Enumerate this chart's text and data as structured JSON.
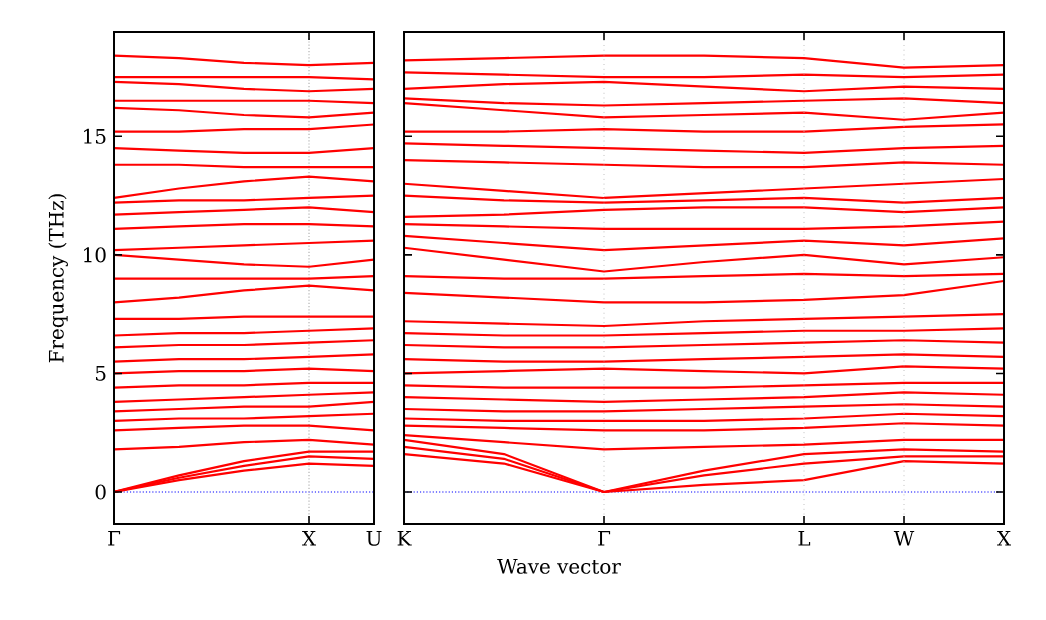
{
  "chart_data": [
    {
      "type": "line",
      "ylabel": "Frequency (THz)",
      "categories": [
        "Γ",
        null,
        null,
        "X",
        "U"
      ],
      "ylim": [
        -1.35,
        19.4
      ],
      "yticks": [
        0,
        5,
        10,
        15
      ],
      "ref_lines": [
        {
          "axis": "y",
          "value": 0,
          "color": "#0000ff",
          "line_style": "dotted"
        },
        {
          "axis": "x",
          "value": "X",
          "color": "#b2b2b2",
          "line_style": "dotted"
        }
      ],
      "series": [
        {
          "color": "#ff0000",
          "values": [
            0,
            0.5,
            0.9,
            1.2,
            1.1
          ]
        },
        {
          "color": "#ff0000",
          "values": [
            0,
            0.6,
            1.1,
            1.5,
            1.4
          ]
        },
        {
          "color": "#ff0000",
          "values": [
            0,
            0.7,
            1.3,
            1.7,
            1.7
          ]
        },
        {
          "color": "#ff0000",
          "values": [
            1.8,
            1.9,
            2.1,
            2.2,
            2.0
          ]
        },
        {
          "color": "#ff0000",
          "values": [
            2.6,
            2.7,
            2.8,
            2.8,
            2.6
          ]
        },
        {
          "color": "#ff0000",
          "values": [
            3.0,
            3.1,
            3.1,
            3.2,
            3.3
          ]
        },
        {
          "color": "#ff0000",
          "values": [
            3.4,
            3.5,
            3.6,
            3.6,
            3.8
          ]
        },
        {
          "color": "#ff0000",
          "values": [
            3.8,
            3.9,
            4.0,
            4.1,
            4.2
          ]
        },
        {
          "color": "#ff0000",
          "values": [
            4.4,
            4.5,
            4.5,
            4.6,
            4.6
          ]
        },
        {
          "color": "#ff0000",
          "values": [
            5.0,
            5.1,
            5.1,
            5.2,
            5.1
          ]
        },
        {
          "color": "#ff0000",
          "values": [
            5.5,
            5.6,
            5.6,
            5.7,
            5.8
          ]
        },
        {
          "color": "#ff0000",
          "values": [
            6.1,
            6.2,
            6.2,
            6.3,
            6.4
          ]
        },
        {
          "color": "#ff0000",
          "values": [
            6.6,
            6.7,
            6.7,
            6.8,
            6.9
          ]
        },
        {
          "color": "#ff0000",
          "values": [
            7.3,
            7.3,
            7.4,
            7.4,
            7.4
          ]
        },
        {
          "color": "#ff0000",
          "values": [
            8.0,
            8.2,
            8.5,
            8.7,
            8.5
          ]
        },
        {
          "color": "#ff0000",
          "values": [
            9.0,
            9.0,
            9.0,
            9.0,
            9.1
          ]
        },
        {
          "color": "#ff0000",
          "values": [
            10.0,
            9.8,
            9.6,
            9.5,
            9.8
          ]
        },
        {
          "color": "#ff0000",
          "values": [
            10.2,
            10.3,
            10.4,
            10.5,
            10.6
          ]
        },
        {
          "color": "#ff0000",
          "values": [
            11.1,
            11.2,
            11.3,
            11.3,
            11.2
          ]
        },
        {
          "color": "#ff0000",
          "values": [
            11.7,
            11.8,
            11.9,
            12.0,
            11.8
          ]
        },
        {
          "color": "#ff0000",
          "values": [
            12.2,
            12.3,
            12.3,
            12.4,
            12.5
          ]
        },
        {
          "color": "#ff0000",
          "values": [
            12.4,
            12.8,
            13.1,
            13.3,
            13.1
          ]
        },
        {
          "color": "#ff0000",
          "values": [
            13.8,
            13.8,
            13.7,
            13.7,
            13.7
          ]
        },
        {
          "color": "#ff0000",
          "values": [
            14.5,
            14.4,
            14.3,
            14.3,
            14.5
          ]
        },
        {
          "color": "#ff0000",
          "values": [
            15.2,
            15.2,
            15.3,
            15.3,
            15.5
          ]
        },
        {
          "color": "#ff0000",
          "values": [
            16.2,
            16.1,
            15.9,
            15.8,
            16.0
          ]
        },
        {
          "color": "#ff0000",
          "values": [
            16.5,
            16.5,
            16.5,
            16.5,
            16.4
          ]
        },
        {
          "color": "#ff0000",
          "values": [
            17.3,
            17.2,
            17.0,
            16.9,
            17.0
          ]
        },
        {
          "color": "#ff0000",
          "values": [
            17.5,
            17.5,
            17.5,
            17.5,
            17.4
          ]
        },
        {
          "color": "#ff0000",
          "values": [
            18.4,
            18.3,
            18.1,
            18.0,
            18.1
          ]
        }
      ]
    },
    {
      "type": "line",
      "xlabel": "Wave vector",
      "categories": [
        "K",
        null,
        "Γ",
        null,
        "L",
        "W",
        "X"
      ],
      "ylim": [
        -1.35,
        19.4
      ],
      "yticks": [
        0,
        5,
        10,
        15
      ],
      "tick_labels": "x",
      "grid": "x",
      "ref_lines": [
        {
          "axis": "y",
          "value": 0,
          "color": "#0000ff",
          "line_style": "dotted"
        }
      ],
      "series": [
        {
          "color": "#ff0000",
          "values": [
            1.6,
            1.2,
            0,
            0.3,
            0.5,
            1.3,
            1.2
          ]
        },
        {
          "color": "#ff0000",
          "values": [
            1.9,
            1.4,
            0,
            0.7,
            1.2,
            1.5,
            1.5
          ]
        },
        {
          "color": "#ff0000",
          "values": [
            2.2,
            1.6,
            0,
            0.9,
            1.6,
            1.8,
            1.7
          ]
        },
        {
          "color": "#ff0000",
          "values": [
            2.4,
            2.1,
            1.8,
            1.9,
            2.0,
            2.2,
            2.2
          ]
        },
        {
          "color": "#ff0000",
          "values": [
            2.8,
            2.7,
            2.6,
            2.6,
            2.7,
            2.9,
            2.8
          ]
        },
        {
          "color": "#ff0000",
          "values": [
            3.1,
            3.0,
            3.0,
            3.0,
            3.1,
            3.3,
            3.2
          ]
        },
        {
          "color": "#ff0000",
          "values": [
            3.5,
            3.4,
            3.4,
            3.5,
            3.6,
            3.7,
            3.6
          ]
        },
        {
          "color": "#ff0000",
          "values": [
            4.0,
            3.9,
            3.8,
            3.9,
            4.0,
            4.2,
            4.1
          ]
        },
        {
          "color": "#ff0000",
          "values": [
            4.5,
            4.4,
            4.4,
            4.4,
            4.5,
            4.6,
            4.6
          ]
        },
        {
          "color": "#ff0000",
          "values": [
            5.0,
            5.1,
            5.2,
            5.1,
            5.0,
            5.3,
            5.2
          ]
        },
        {
          "color": "#ff0000",
          "values": [
            5.6,
            5.5,
            5.5,
            5.6,
            5.7,
            5.8,
            5.7
          ]
        },
        {
          "color": "#ff0000",
          "values": [
            6.2,
            6.1,
            6.1,
            6.2,
            6.3,
            6.4,
            6.3
          ]
        },
        {
          "color": "#ff0000",
          "values": [
            6.7,
            6.6,
            6.6,
            6.7,
            6.8,
            6.8,
            6.9
          ]
        },
        {
          "color": "#ff0000",
          "values": [
            7.2,
            7.1,
            7.0,
            7.2,
            7.3,
            7.4,
            7.5
          ]
        },
        {
          "color": "#ff0000",
          "values": [
            8.4,
            8.2,
            8.0,
            8.0,
            8.1,
            8.3,
            8.9
          ]
        },
        {
          "color": "#ff0000",
          "values": [
            9.1,
            9.0,
            9.0,
            9.1,
            9.2,
            9.1,
            9.2
          ]
        },
        {
          "color": "#ff0000",
          "values": [
            10.3,
            9.8,
            9.3,
            9.7,
            10.0,
            9.6,
            9.9
          ]
        },
        {
          "color": "#ff0000",
          "values": [
            10.8,
            10.5,
            10.2,
            10.4,
            10.6,
            10.4,
            10.7
          ]
        },
        {
          "color": "#ff0000",
          "values": [
            11.3,
            11.2,
            11.1,
            11.1,
            11.1,
            11.2,
            11.4
          ]
        },
        {
          "color": "#ff0000",
          "values": [
            11.6,
            11.7,
            11.9,
            12.0,
            12.0,
            11.8,
            12.0
          ]
        },
        {
          "color": "#ff0000",
          "values": [
            12.5,
            12.3,
            12.2,
            12.3,
            12.4,
            12.2,
            12.4
          ]
        },
        {
          "color": "#ff0000",
          "values": [
            13.0,
            12.7,
            12.4,
            12.6,
            12.8,
            13.0,
            13.2
          ]
        },
        {
          "color": "#ff0000",
          "values": [
            14.0,
            13.9,
            13.8,
            13.7,
            13.7,
            13.9,
            13.8
          ]
        },
        {
          "color": "#ff0000",
          "values": [
            14.7,
            14.6,
            14.5,
            14.4,
            14.3,
            14.5,
            14.6
          ]
        },
        {
          "color": "#ff0000",
          "values": [
            15.2,
            15.2,
            15.3,
            15.2,
            15.2,
            15.4,
            15.5
          ]
        },
        {
          "color": "#ff0000",
          "values": [
            16.4,
            16.1,
            15.8,
            15.9,
            16.0,
            15.7,
            16.0
          ]
        },
        {
          "color": "#ff0000",
          "values": [
            16.6,
            16.4,
            16.3,
            16.4,
            16.5,
            16.6,
            16.4
          ]
        },
        {
          "color": "#ff0000",
          "values": [
            17.0,
            17.2,
            17.3,
            17.1,
            16.9,
            17.1,
            17.0
          ]
        },
        {
          "color": "#ff0000",
          "values": [
            17.7,
            17.6,
            17.5,
            17.5,
            17.6,
            17.5,
            17.6
          ]
        },
        {
          "color": "#ff0000",
          "values": [
            18.2,
            18.3,
            18.4,
            18.4,
            18.3,
            17.9,
            18.0
          ]
        }
      ]
    }
  ]
}
